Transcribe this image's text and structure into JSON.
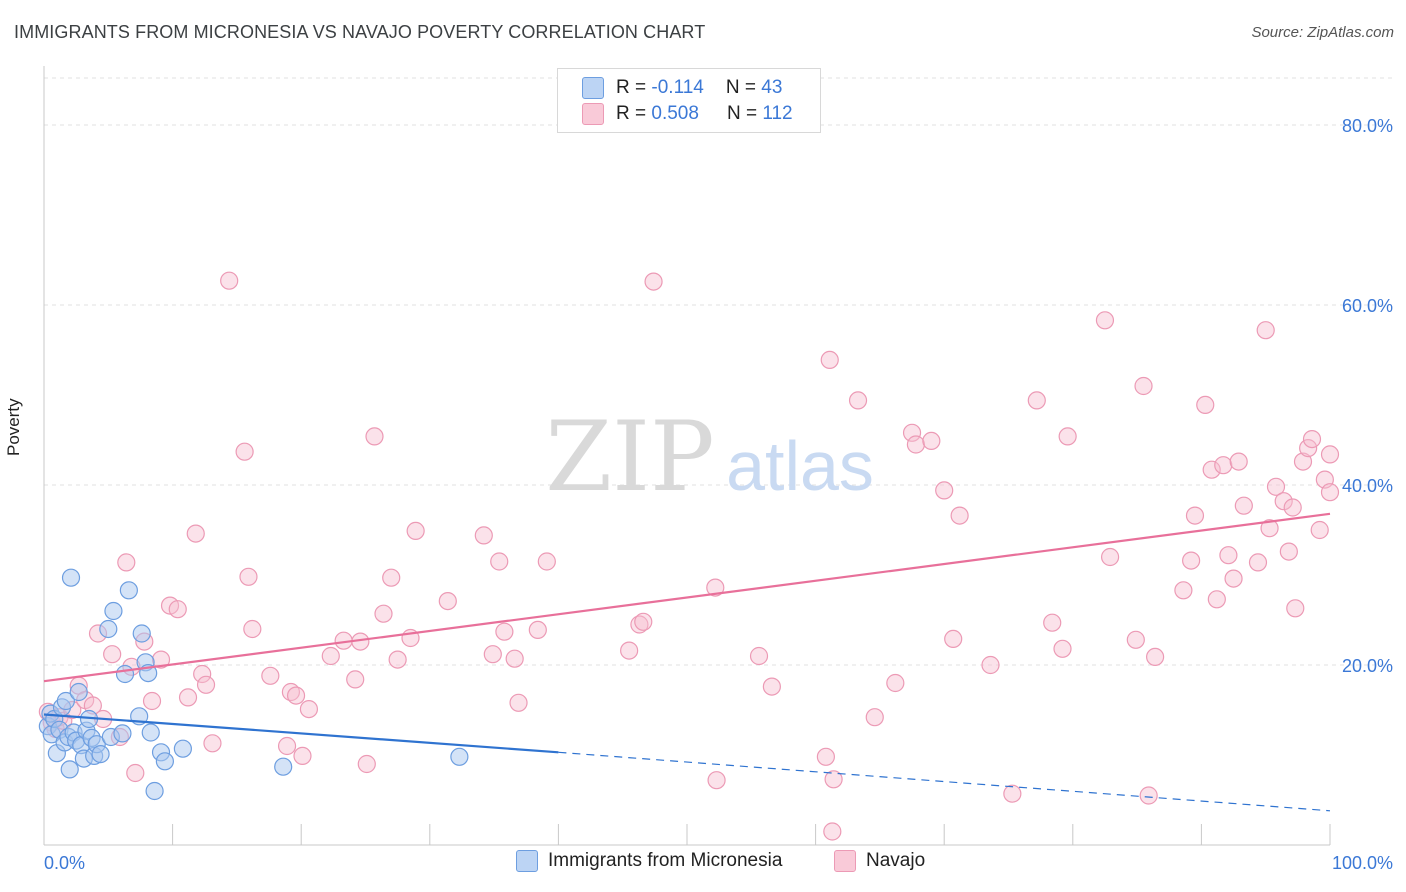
{
  "header": {
    "title": "IMMIGRANTS FROM MICRONESIA VS NAVAJO POVERTY CORRELATION CHART",
    "source": "Source: ZipAtlas.com"
  },
  "watermark": {
    "zip": "ZIP",
    "atlas": "atlas"
  },
  "legend": {
    "rows": [
      {
        "r_label": "R =",
        "r_value": "-0.114",
        "n_label": "N =",
        "n_value": "43"
      },
      {
        "r_label": "R =",
        "r_value": "0.508",
        "n_label": "N =",
        "n_value": "112"
      }
    ]
  },
  "colors": {
    "blue_fill": "#aac8f0",
    "blue_stroke": "#6d9ee0",
    "blue_line": "#2f73d0",
    "pink_fill": "#f7bfd0",
    "pink_stroke": "#ec9ab5",
    "pink_line": "#e8709a",
    "axis_label": "#3b78d6",
    "grid": "#e2e2e2"
  },
  "chart_data": {
    "type": "scatter",
    "title": "IMMIGRANTS FROM MICRONESIA VS NAVAJO POVERTY CORRELATION CHART",
    "xlabel": "",
    "ylabel": "Poverty",
    "xlim": [
      0,
      100
    ],
    "ylim": [
      0,
      85
    ],
    "x_tick_labels": [
      "0.0%",
      "100.0%"
    ],
    "y_ticks": [
      20,
      40,
      60,
      80
    ],
    "y_tick_labels": [
      "20.0%",
      "40.0%",
      "60.0%",
      "80.0%"
    ],
    "grid": true,
    "legend_position": "top-center",
    "series": [
      {
        "name": "Immigrants from Micronesia",
        "R": -0.114,
        "N": 43,
        "trend": {
          "x0": 0,
          "y0": 14.5,
          "x1": 40,
          "y1": 10.3,
          "dashed_to_x": 100,
          "dashed_to_y": 3.8
        },
        "points": [
          [
            0.3,
            13.2
          ],
          [
            0.5,
            14.6
          ],
          [
            0.6,
            12.3
          ],
          [
            0.8,
            14.0
          ],
          [
            1.0,
            10.2
          ],
          [
            1.2,
            12.8
          ],
          [
            1.4,
            15.3
          ],
          [
            1.6,
            11.4
          ],
          [
            1.7,
            16.0
          ],
          [
            1.9,
            12.0
          ],
          [
            2.0,
            8.4
          ],
          [
            2.1,
            29.7
          ],
          [
            2.3,
            12.5
          ],
          [
            2.5,
            11.6
          ],
          [
            2.7,
            17.0
          ],
          [
            2.9,
            11.1
          ],
          [
            3.1,
            9.6
          ],
          [
            3.3,
            12.7
          ],
          [
            3.5,
            14.0
          ],
          [
            3.7,
            11.9
          ],
          [
            3.9,
            9.9
          ],
          [
            4.1,
            11.2
          ],
          [
            4.4,
            10.1
          ],
          [
            5.0,
            24.0
          ],
          [
            5.2,
            12.0
          ],
          [
            5.4,
            26.0
          ],
          [
            6.1,
            12.4
          ],
          [
            6.3,
            19.0
          ],
          [
            6.6,
            28.3
          ],
          [
            7.4,
            14.3
          ],
          [
            7.6,
            23.5
          ],
          [
            7.9,
            20.3
          ],
          [
            8.1,
            19.1
          ],
          [
            8.3,
            12.5
          ],
          [
            8.6,
            6.0
          ],
          [
            9.1,
            10.3
          ],
          [
            9.4,
            9.3
          ],
          [
            10.8,
            10.7
          ],
          [
            18.6,
            8.7
          ],
          [
            32.3,
            9.8
          ]
        ]
      },
      {
        "name": "Navajo",
        "R": 0.508,
        "N": 112,
        "trend": {
          "x0": 0,
          "y0": 18.2,
          "x1": 100,
          "y1": 36.8
        },
        "points": [
          [
            0.3,
            14.8
          ],
          [
            0.6,
            13.6
          ],
          [
            0.9,
            12.9
          ],
          [
            1.2,
            14.2
          ],
          [
            1.5,
            13.8
          ],
          [
            2.2,
            15.0
          ],
          [
            2.7,
            17.7
          ],
          [
            3.2,
            16.1
          ],
          [
            3.8,
            15.5
          ],
          [
            4.2,
            23.5
          ],
          [
            4.6,
            14.0
          ],
          [
            5.3,
            21.2
          ],
          [
            5.9,
            12.0
          ],
          [
            6.4,
            31.4
          ],
          [
            6.8,
            19.8
          ],
          [
            7.1,
            8.0
          ],
          [
            7.8,
            22.6
          ],
          [
            8.4,
            16.0
          ],
          [
            9.1,
            20.6
          ],
          [
            9.8,
            26.6
          ],
          [
            10.4,
            26.2
          ],
          [
            11.2,
            16.4
          ],
          [
            11.8,
            34.6
          ],
          [
            12.3,
            19.0
          ],
          [
            12.6,
            17.8
          ],
          [
            13.1,
            11.3
          ],
          [
            14.4,
            62.7
          ],
          [
            15.6,
            43.7
          ],
          [
            15.9,
            29.8
          ],
          [
            16.2,
            24.0
          ],
          [
            17.6,
            18.8
          ],
          [
            18.9,
            11.0
          ],
          [
            19.2,
            17.0
          ],
          [
            19.6,
            16.6
          ],
          [
            20.1,
            9.9
          ],
          [
            20.6,
            15.1
          ],
          [
            22.3,
            21.0
          ],
          [
            23.3,
            22.7
          ],
          [
            24.2,
            18.4
          ],
          [
            24.6,
            22.6
          ],
          [
            25.1,
            9.0
          ],
          [
            25.7,
            45.4
          ],
          [
            26.4,
            25.7
          ],
          [
            27.0,
            29.7
          ],
          [
            27.5,
            20.6
          ],
          [
            28.5,
            23.0
          ],
          [
            28.9,
            34.9
          ],
          [
            31.4,
            27.1
          ],
          [
            34.2,
            34.4
          ],
          [
            34.9,
            21.2
          ],
          [
            35.4,
            31.5
          ],
          [
            35.8,
            23.7
          ],
          [
            36.6,
            20.7
          ],
          [
            36.9,
            15.8
          ],
          [
            38.4,
            23.9
          ],
          [
            39.1,
            31.5
          ],
          [
            45.5,
            21.6
          ],
          [
            46.3,
            24.5
          ],
          [
            46.6,
            24.8
          ],
          [
            47.4,
            62.6
          ],
          [
            52.2,
            28.6
          ],
          [
            52.3,
            7.2
          ],
          [
            55.6,
            21.0
          ],
          [
            56.6,
            17.6
          ],
          [
            60.8,
            9.8
          ],
          [
            61.1,
            53.9
          ],
          [
            61.3,
            1.5
          ],
          [
            61.4,
            7.3
          ],
          [
            63.3,
            49.4
          ],
          [
            64.6,
            14.2
          ],
          [
            66.2,
            18.0
          ],
          [
            67.5,
            45.8
          ],
          [
            67.8,
            44.5
          ],
          [
            69.0,
            44.9
          ],
          [
            70.0,
            39.4
          ],
          [
            70.7,
            22.9
          ],
          [
            71.2,
            36.6
          ],
          [
            73.6,
            20.0
          ],
          [
            75.3,
            5.7
          ],
          [
            77.2,
            49.4
          ],
          [
            78.4,
            24.7
          ],
          [
            79.2,
            21.8
          ],
          [
            79.6,
            45.4
          ],
          [
            82.5,
            58.3
          ],
          [
            82.9,
            32.0
          ],
          [
            84.9,
            22.8
          ],
          [
            85.5,
            51.0
          ],
          [
            85.9,
            5.5
          ],
          [
            86.4,
            20.9
          ],
          [
            88.6,
            28.3
          ],
          [
            89.2,
            31.6
          ],
          [
            89.5,
            36.6
          ],
          [
            90.3,
            48.9
          ],
          [
            90.8,
            41.7
          ],
          [
            91.2,
            27.3
          ],
          [
            91.7,
            42.2
          ],
          [
            92.1,
            32.2
          ],
          [
            92.5,
            29.6
          ],
          [
            92.9,
            42.6
          ],
          [
            93.3,
            37.7
          ],
          [
            94.4,
            31.4
          ],
          [
            95.0,
            57.2
          ],
          [
            95.3,
            35.2
          ],
          [
            95.8,
            39.8
          ],
          [
            96.4,
            38.2
          ],
          [
            96.8,
            32.6
          ],
          [
            97.1,
            37.5
          ],
          [
            97.3,
            26.3
          ],
          [
            97.9,
            42.6
          ],
          [
            98.3,
            44.1
          ],
          [
            98.6,
            45.1
          ],
          [
            99.2,
            35.0
          ],
          [
            99.6,
            40.6
          ],
          [
            100.0,
            43.4
          ],
          [
            100.0,
            39.2
          ]
        ]
      }
    ]
  }
}
